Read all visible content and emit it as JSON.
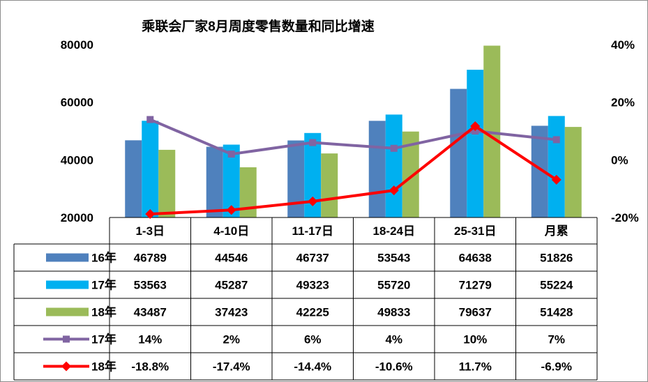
{
  "chart_data": {
    "type": "bar",
    "title": "乘联会厂家8月周度零售数量和同比增速",
    "categories": [
      "1-3日",
      "4-10日",
      "11-17日",
      "18-24日",
      "25-31日",
      "月累"
    ],
    "y_left": {
      "ylim": [
        20000,
        80000
      ],
      "ticks": [
        "20000",
        "40000",
        "60000",
        "80000"
      ],
      "tick_values": [
        20000,
        40000,
        60000,
        80000
      ]
    },
    "y_right": {
      "ylim": [
        -20,
        40
      ],
      "ticks": [
        "-20%",
        "0%",
        "20%",
        "40%"
      ],
      "tick_values": [
        -20,
        0,
        20,
        40
      ],
      "unit": "%"
    },
    "grid": false,
    "legend": "data-table",
    "series": [
      {
        "name": "16年",
        "type": "bar",
        "axis": "left",
        "color": "#4F81BD",
        "values": [
          46789,
          44546,
          46737,
          53543,
          64638,
          51826
        ],
        "labels": [
          "46789",
          "44546",
          "46737",
          "53543",
          "64638",
          "51826"
        ]
      },
      {
        "name": "17年",
        "type": "bar",
        "axis": "left",
        "color": "#00B0F0",
        "values": [
          53563,
          45287,
          49323,
          55720,
          71279,
          55224
        ],
        "labels": [
          "53563",
          "45287",
          "49323",
          "55720",
          "71279",
          "55224"
        ]
      },
      {
        "name": "18年",
        "type": "bar",
        "axis": "left",
        "color": "#9BBB59",
        "values": [
          43487,
          37423,
          42225,
          49833,
          79637,
          51428
        ],
        "labels": [
          "43487",
          "37423",
          "42225",
          "49833",
          "79637",
          "51428"
        ]
      },
      {
        "name": "17年",
        "type": "line",
        "axis": "right",
        "color": "#8064A2",
        "marker": "square",
        "values": [
          14,
          2,
          6,
          4,
          10,
          7
        ],
        "labels": [
          "14%",
          "2%",
          "6%",
          "4%",
          "10%",
          "7%"
        ]
      },
      {
        "name": "18年",
        "type": "line",
        "axis": "right",
        "color": "#FF0000",
        "marker": "diamond",
        "values": [
          -18.8,
          -17.4,
          -14.4,
          -10.6,
          11.7,
          -6.9
        ],
        "labels": [
          "-18.8%",
          "-17.4%",
          "-14.4%",
          "-10.6%",
          "11.7%",
          "-6.9%"
        ]
      }
    ]
  }
}
